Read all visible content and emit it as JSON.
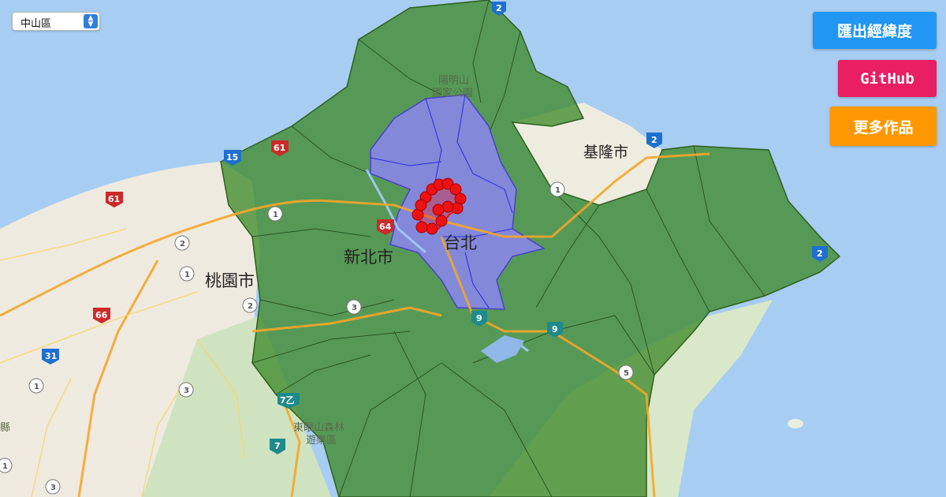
{
  "district_select": {
    "selected": "中山區"
  },
  "buttons": {
    "export": "匯出經緯度",
    "github": "GitHub",
    "more": "更多作品"
  },
  "map_labels": {
    "taipei": "台北",
    "new_taipei": "新北市",
    "taoyuan": "桃園市",
    "keelung": "基隆市",
    "yangmingshan_1": "陽明山",
    "yangmingshan_2": "國家公園",
    "dongyanshan_1": "東眼山森林",
    "dongyanshan_2": "遊樂區",
    "partial_county": "縣"
  },
  "road_shields": {
    "r2a": "2",
    "r2b": "2",
    "r2c": "2",
    "r15": "15",
    "r61a": "61",
    "r61b": "61",
    "r64": "64",
    "r66": "66",
    "r31": "31",
    "r9a": "9",
    "r9b": "9",
    "r7": "7",
    "r7b": "7乙",
    "r1a": "1",
    "r1b": "1",
    "r1c": "1",
    "r1d": "1",
    "r3a": "3",
    "r3b": "3",
    "r3c": "3",
    "r5": "5",
    "r2d": "2",
    "r2e": "2",
    "r1e": "1"
  },
  "colors": {
    "new_taipei_fill": "#3f8a2c",
    "taipei_fill": "#8d84f6",
    "marker": "#ee1111"
  }
}
